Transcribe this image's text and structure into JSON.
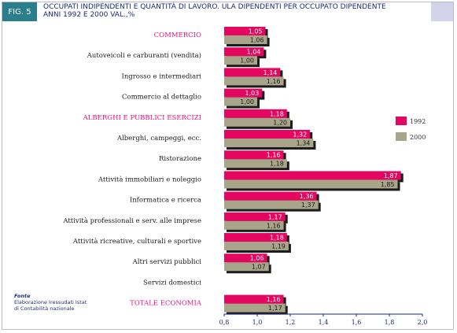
{
  "header": {
    "fig_label": "FIG. 5",
    "title_line1": "OCCUPATI INDIPENDENTI E QUANTITÀ DI LAVORO. ULA DIPENDENTI PER OCCUPATO DIPENDENTE",
    "title_line2": "ANNI 1992 E 2000  VAL.,%"
  },
  "source": {
    "heading": "Fonte",
    "line1": "Elaborazione Iressudati Istat",
    "line2": "di Contabilità nazionale"
  },
  "colors": {
    "series_1992": "#e5065f",
    "series_2000": "#a9a58a",
    "highlight_label": "#e8107a",
    "normal_label": "#1a1a1a",
    "axis": "#1a2a7a"
  },
  "chart_data": {
    "type": "bar",
    "orientation": "horizontal",
    "categories": [
      "COMMERCIO",
      "Autoveicoli e carburanti (vendita)",
      "Ingrosso e intermediari",
      "Commercio al dettaglio",
      "ALBERGHI E PUBBLICI ESERCIZI",
      "Alberghi, campeggi, ecc.",
      "Ristorazione",
      "Attività immobiliari e noleggio",
      "Informatica e ricerca",
      "Attività professionali e serv. alle imprese",
      "Attività ricreative, culturali e sportive",
      "Altri servizi pubblici",
      "Servizi domestici",
      "TOTALE ECONOMIA"
    ],
    "highlighted_categories": [
      "COMMERCIO",
      "ALBERGHI E PUBBLICI ESERCIZI",
      "TOTALE ECONOMIA"
    ],
    "series": [
      {
        "name": "1992",
        "values": [
          1.05,
          1.04,
          1.14,
          1.03,
          1.18,
          1.32,
          1.16,
          1.87,
          1.36,
          1.17,
          1.18,
          1.06,
          null,
          1.16
        ]
      },
      {
        "name": "2000",
        "values": [
          1.06,
          1.0,
          1.16,
          1.0,
          1.2,
          1.34,
          1.18,
          1.85,
          1.37,
          1.16,
          1.19,
          1.07,
          null,
          1.17
        ]
      }
    ],
    "value_labels": {
      "1992": [
        "1,05",
        "1,04",
        "1,14",
        "1,03",
        "1,18",
        "1,32",
        "1,16",
        "1,87",
        "1,36",
        "1,17",
        "1,18",
        "1,06",
        "",
        "1,16"
      ],
      "2000": [
        "1,06",
        "1,00",
        "1,16",
        "1,00",
        "1,20",
        "1,34",
        "1,18",
        "1,85",
        "1,37",
        "1,16",
        "1,19",
        "1,07",
        "",
        "1,17"
      ]
    },
    "xlim": [
      0.8,
      2.0
    ],
    "xticks": [
      0.8,
      1.0,
      1.2,
      1.4,
      1.6,
      1.8,
      2.0
    ],
    "xtick_labels": [
      "0,8",
      "1,0",
      "1,2",
      "1,4",
      "1,6",
      "1,8",
      "2,0"
    ],
    "legend": [
      "1992",
      "2000"
    ],
    "legend_position": "right",
    "grid": false
  }
}
